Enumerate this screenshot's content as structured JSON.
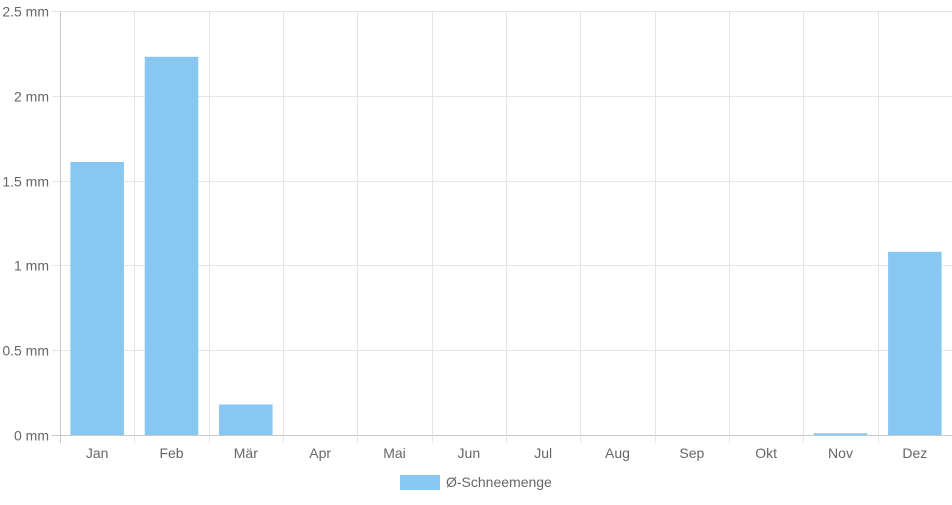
{
  "chart_data": {
    "type": "bar",
    "categories": [
      "Jan",
      "Feb",
      "Mär",
      "Apr",
      "Mai",
      "Jun",
      "Jul",
      "Aug",
      "Sep",
      "Okt",
      "Nov",
      "Dez"
    ],
    "series": [
      {
        "name": "Ø-Schneemenge",
        "values": [
          1.61,
          2.23,
          0.18,
          0,
          0,
          0,
          0,
          0,
          0,
          0,
          0.01,
          1.08
        ],
        "color": "#88c7f2"
      }
    ],
    "y_ticks": [
      0,
      0.5,
      1,
      1.5,
      2,
      2.5
    ],
    "y_tick_labels": [
      "0 mm",
      "0.5 mm",
      "1 mm",
      "1.5 mm",
      "2 mm",
      "2.5 mm"
    ],
    "ylim": [
      0,
      2.5
    ],
    "grid": true,
    "legend_position": "bottom",
    "grid_color": "#e5e5e5",
    "axis_color": "#c8c8c8",
    "text_color": "#666666"
  }
}
